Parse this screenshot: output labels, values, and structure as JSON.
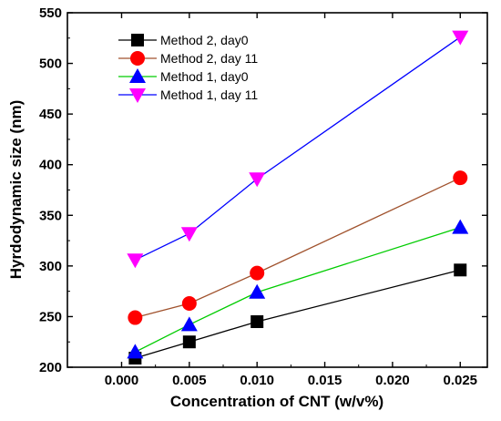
{
  "chart_data": {
    "type": "line",
    "title": "",
    "xlabel": "Concentration of CNT (w/v%)",
    "ylabel": "Hyrdodynamic size (nm)",
    "xlim": [
      -0.004,
      0.027
    ],
    "ylim": [
      200,
      550
    ],
    "xticks": [
      0.0,
      0.005,
      0.01,
      0.015,
      0.02,
      0.025
    ],
    "xtick_labels": [
      "0.000",
      "0.005",
      "0.010",
      "0.015",
      "0.020",
      "0.025"
    ],
    "yticks": [
      200,
      250,
      300,
      350,
      400,
      450,
      500,
      550
    ],
    "ytick_labels": [
      "200",
      "250",
      "300",
      "350",
      "400",
      "450",
      "500",
      "550"
    ],
    "grid": false,
    "legend_position": "top-left",
    "x": [
      0.001,
      0.005,
      0.01,
      0.025
    ],
    "series": [
      {
        "name": "Method 2, day0",
        "values": [
          209,
          225,
          245,
          296
        ],
        "color": "#000000",
        "marker": "square"
      },
      {
        "name": "Method 2, day 11",
        "values": [
          249,
          263,
          293,
          387
        ],
        "color": "#ff0000",
        "line_color": "#a0522d",
        "marker": "circle"
      },
      {
        "name": "Method 1, day0",
        "values": [
          215,
          242,
          274,
          338
        ],
        "color": "#0000ff",
        "line_color": "#00cc00",
        "marker": "triangle-up"
      },
      {
        "name": "Method 1, day 11",
        "values": [
          306,
          332,
          386,
          526
        ],
        "color": "#ff00ff",
        "line_color": "#0000ff",
        "marker": "triangle-down"
      }
    ]
  }
}
